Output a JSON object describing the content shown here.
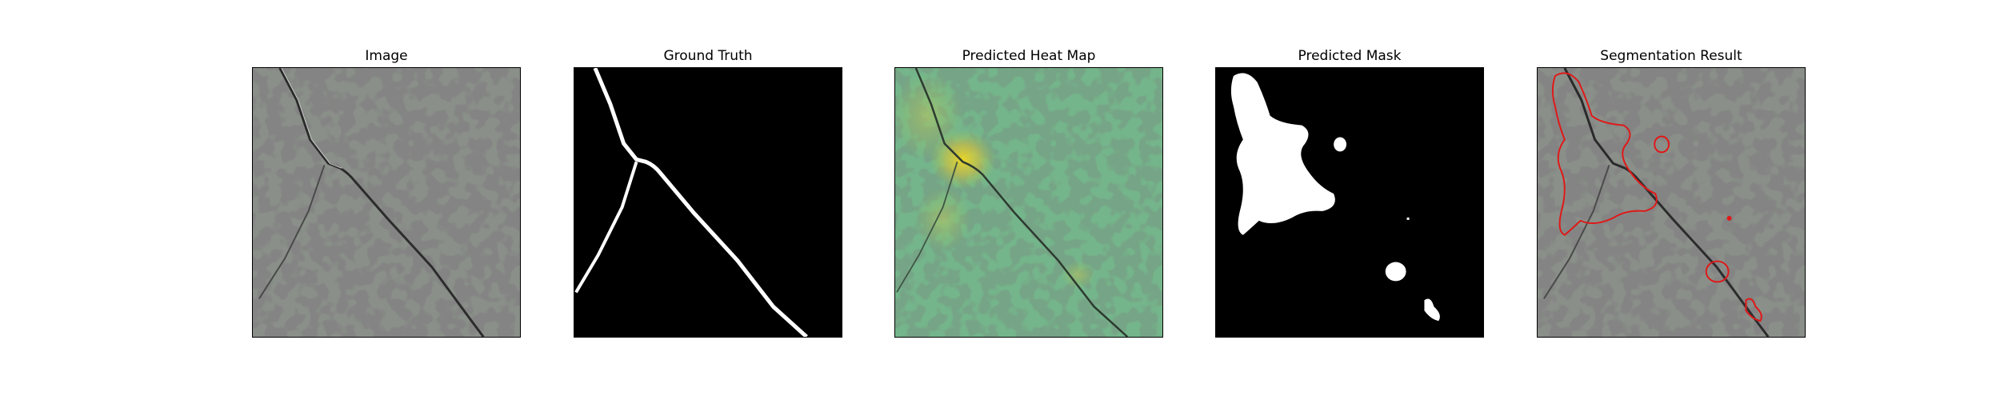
{
  "panels": [
    {
      "title": "Image",
      "image": "speckled-gray-stone-texture-with-crack"
    },
    {
      "title": "Ground Truth",
      "image": "binary-crack-mask-white-on-black"
    },
    {
      "title": "Predicted Heat Map",
      "image": "green-heat-map-overlay-with-yellow-hotspot"
    },
    {
      "title": "Predicted Mask",
      "image": "binary-predicted-mask-white-blobs"
    },
    {
      "title": "Segmentation Result",
      "image": "texture-with-red-segmentation-contours"
    }
  ],
  "colors": {
    "stone_base": "#8a9089",
    "stone_spot": "#3a3b3a",
    "mask_white": "#ffffff",
    "mask_black": "#000000",
    "heat_green": "#6cbf88",
    "heat_yellow": "#e6d22c",
    "contour_red": "#e01818"
  }
}
